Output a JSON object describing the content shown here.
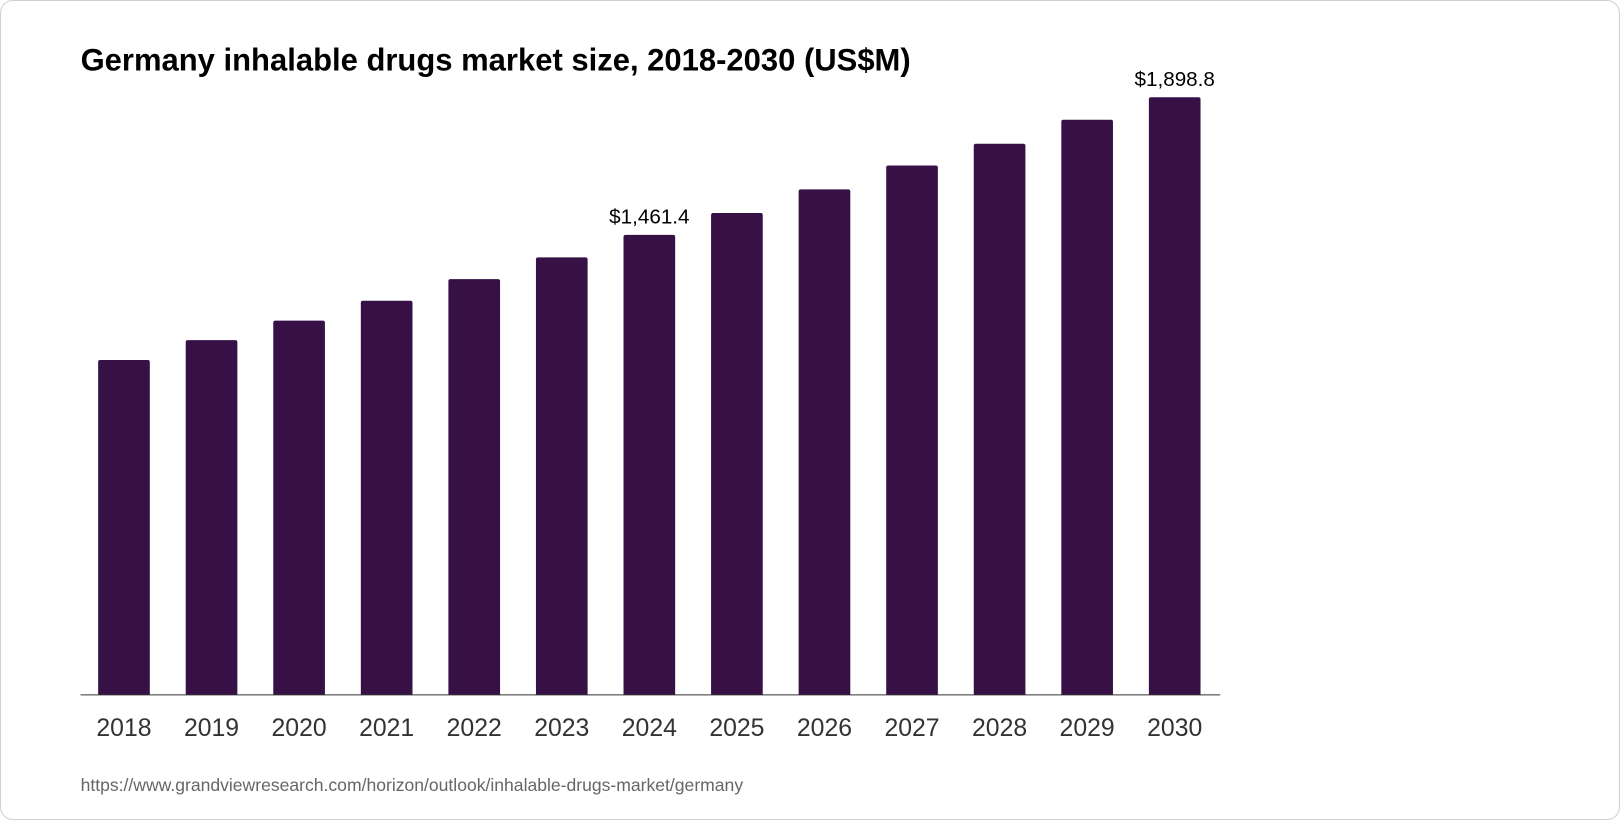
{
  "chart_data": {
    "type": "bar",
    "title": "Germany inhalable drugs market size, 2018-2030 (US$M)",
    "xlabel": "",
    "ylabel": "",
    "categories": [
      "2018",
      "2019",
      "2020",
      "2021",
      "2022",
      "2023",
      "2024",
      "2025",
      "2026",
      "2027",
      "2028",
      "2029",
      "2030"
    ],
    "values": [
      1064,
      1127,
      1189,
      1252,
      1321,
      1390,
      1461.4,
      1531,
      1606,
      1682,
      1751,
      1827,
      1898.8
    ],
    "data_labels": {
      "2024": "$1,461.4",
      "2030": "$1,898.8"
    },
    "ylim": [
      0,
      1898.8
    ],
    "grid": false,
    "bar_color": "#371146"
  },
  "source_url": "https://www.grandviewresearch.com/horizon/outlook/inhalable-drugs-market/germany"
}
